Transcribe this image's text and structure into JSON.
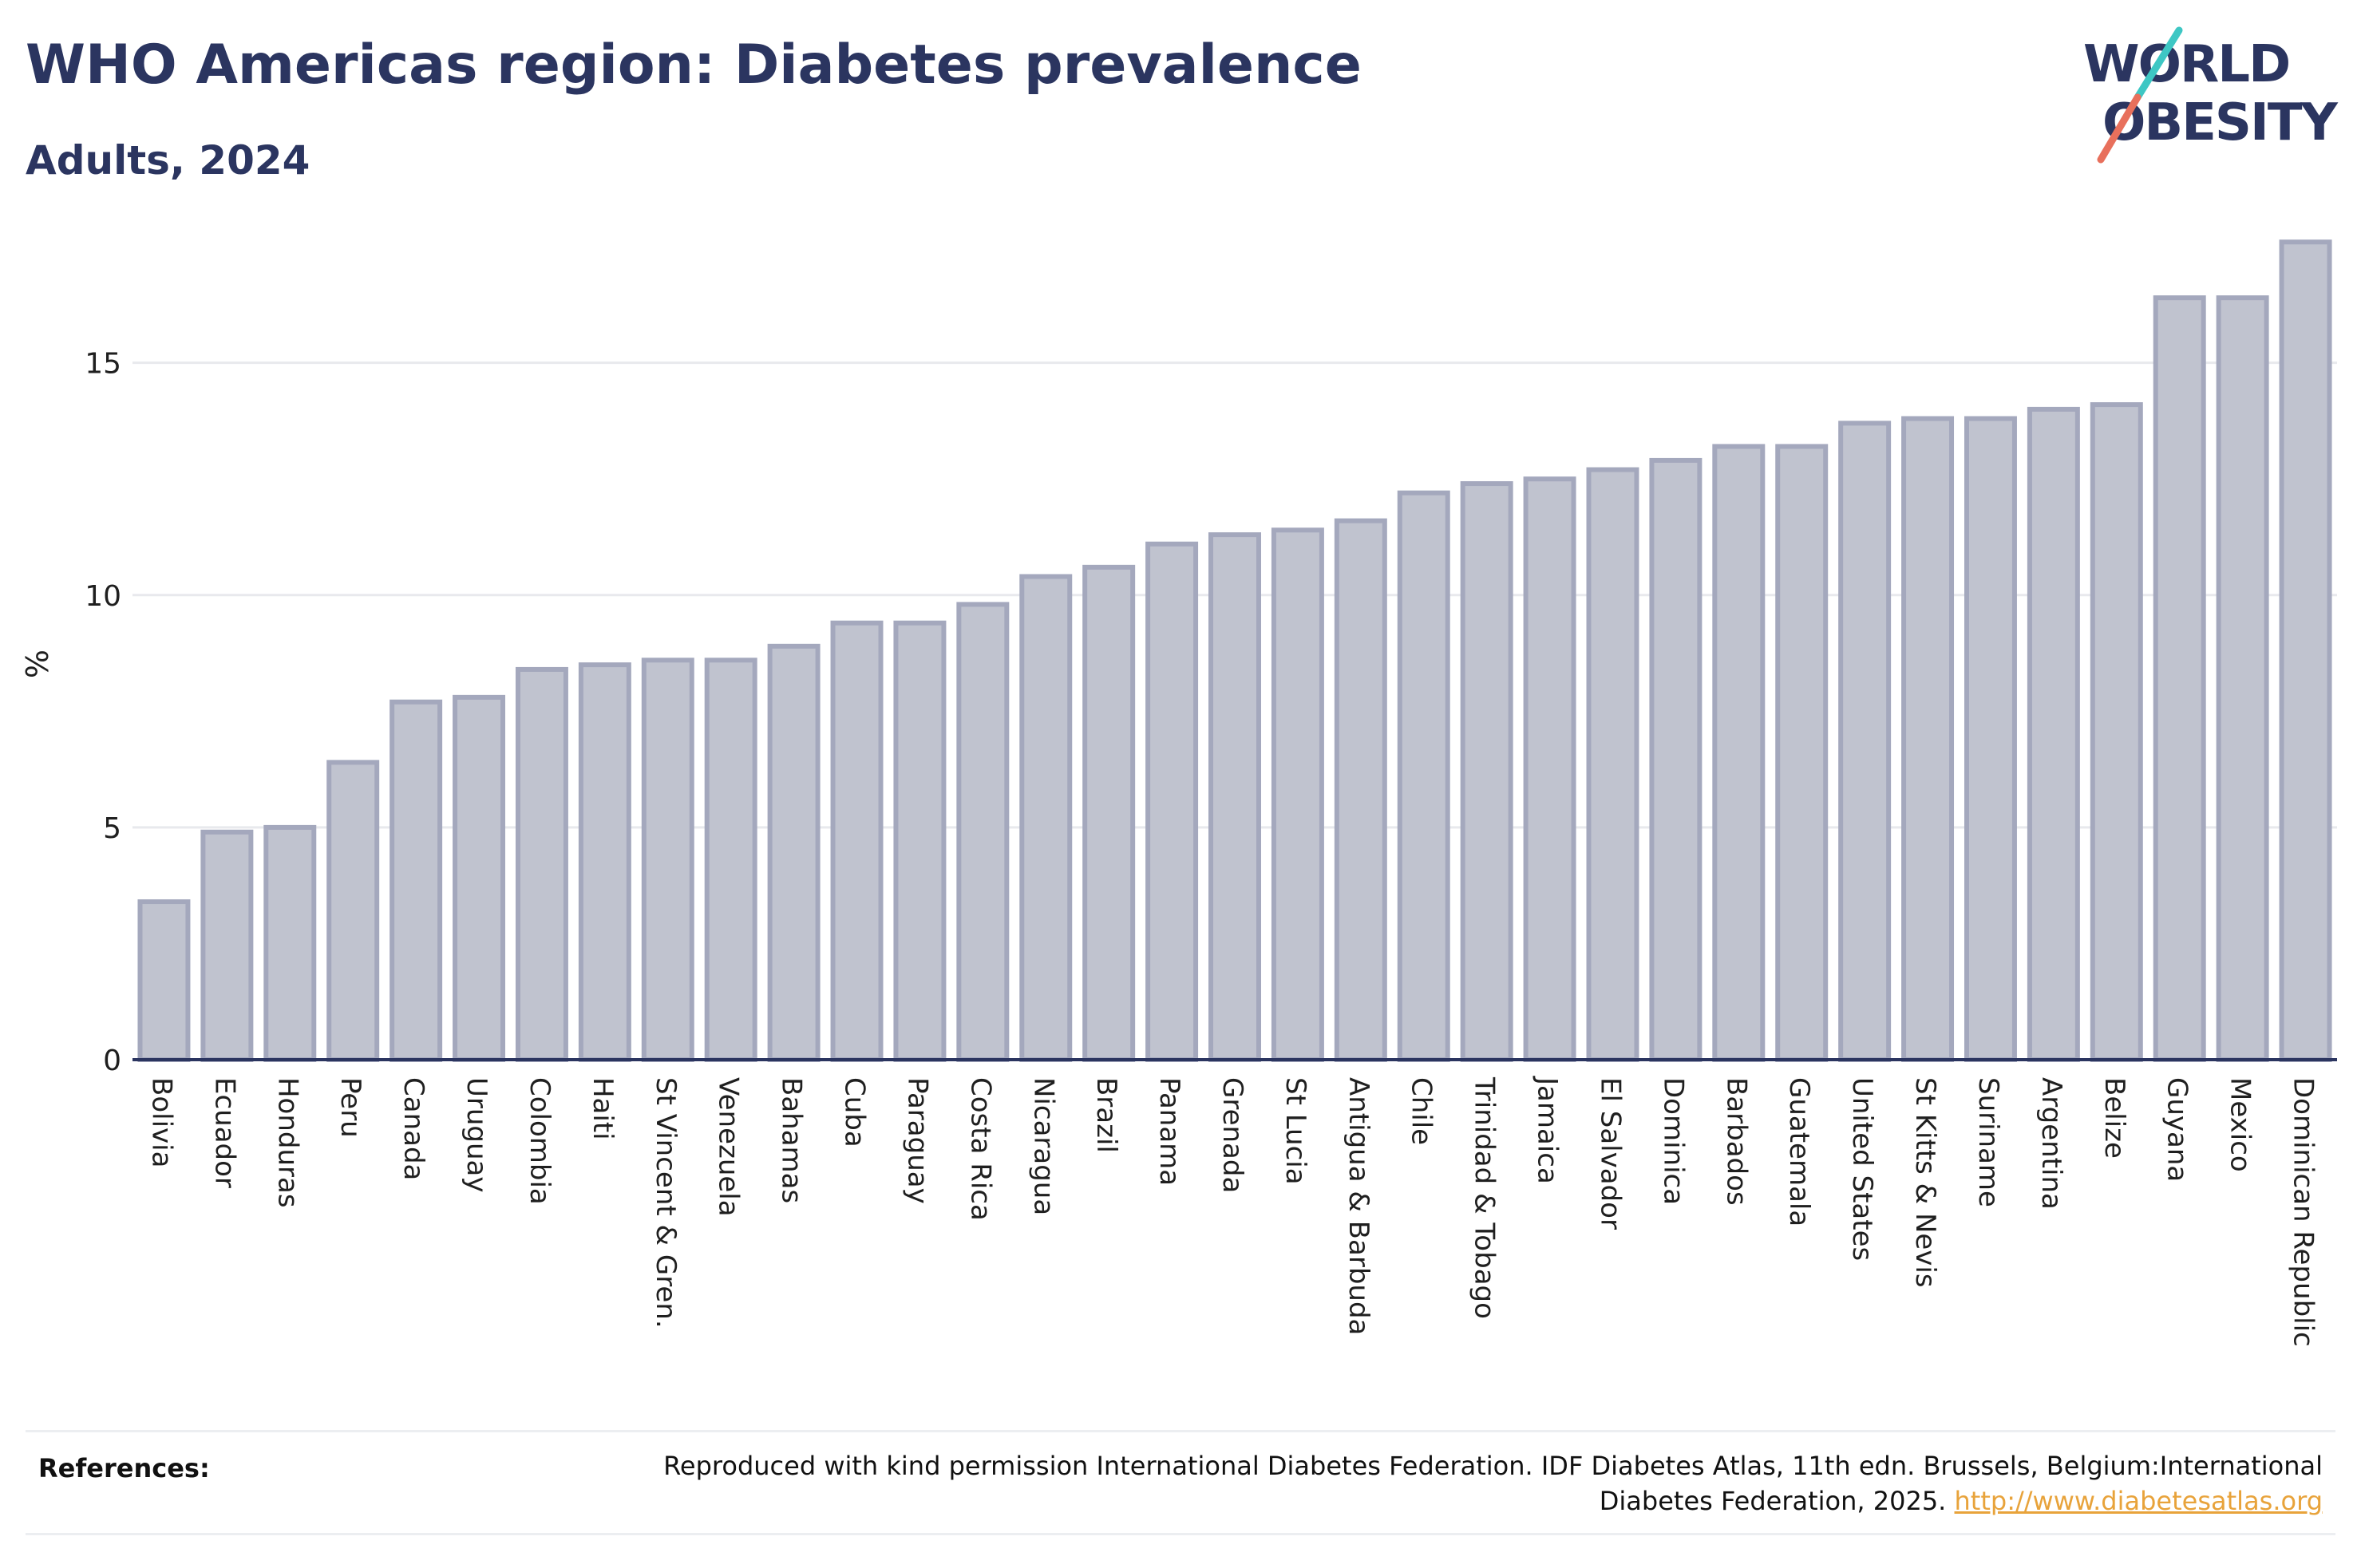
{
  "header": {
    "title": "WHO Americas region: Diabetes prevalence",
    "subtitle": "Adults, 2024"
  },
  "logo": {
    "line1": "WORLD",
    "line2": "OBESITY"
  },
  "colors": {
    "bar_fill": "#c0c3cf",
    "bar_stroke": "#a4a8bd",
    "title": "#2b3560",
    "axis": "#2b3560",
    "grid": "#e8e9ed",
    "link": "#e8a33b",
    "logo_teal": "#3ec7c4",
    "logo_coral": "#e8705c"
  },
  "chart_data": {
    "type": "bar",
    "title": "WHO Americas region: Diabetes prevalence",
    "subtitle": "Adults, 2024",
    "xlabel": "",
    "ylabel": "%",
    "ylim": [
      0,
      18
    ],
    "yticks": [
      0,
      5,
      10,
      15
    ],
    "grid": true,
    "categories": [
      "Bolivia",
      "Ecuador",
      "Honduras",
      "Peru",
      "Canada",
      "Uruguay",
      "Colombia",
      "Haiti",
      "St Vincent & Gren.",
      "Venezuela",
      "Bahamas",
      "Cuba",
      "Paraguay",
      "Costa Rica",
      "Nicaragua",
      "Brazil",
      "Panama",
      "Grenada",
      "St Lucia",
      "Antigua & Barbuda",
      "Chile",
      "Trinidad & Tobago",
      "Jamaica",
      "El Salvador",
      "Dominica",
      "Barbados",
      "Guatemala",
      "United States",
      "St Kitts & Nevis",
      "Suriname",
      "Argentina",
      "Belize",
      "Guyana",
      "Mexico",
      "Dominican Republic"
    ],
    "values": [
      3.4,
      4.9,
      5.0,
      6.4,
      7.7,
      7.8,
      8.4,
      8.5,
      8.6,
      8.6,
      8.9,
      9.4,
      9.4,
      9.8,
      10.4,
      10.6,
      11.1,
      11.3,
      11.4,
      11.6,
      12.2,
      12.4,
      12.5,
      12.7,
      12.9,
      13.2,
      13.2,
      13.7,
      13.8,
      13.8,
      14.0,
      14.1,
      16.4,
      16.4,
      17.6
    ]
  },
  "references": {
    "label": "References:",
    "text": "Reproduced with kind permission International Diabetes Federation. IDF Diabetes Atlas, 11th edn. Brussels, Belgium:International Diabetes Federation, 2025.",
    "link": "http://www.diabetesatlas.org"
  }
}
